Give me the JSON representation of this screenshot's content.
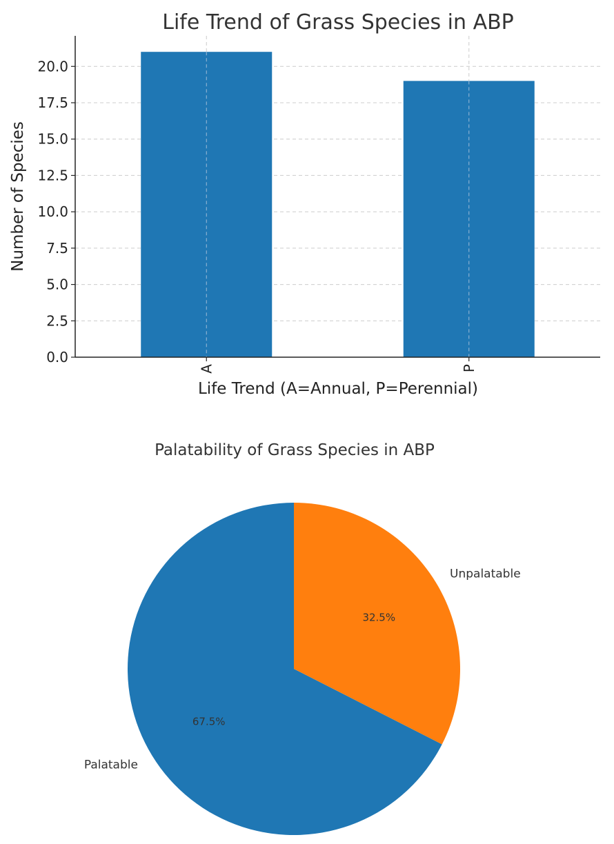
{
  "chart_data": [
    {
      "type": "bar",
      "title": "Life Trend of Grass Species in ABP",
      "xlabel": "Life Trend (A=Annual, P=Perennial)",
      "ylabel": "Number of Species",
      "categories": [
        "A",
        "P"
      ],
      "values": [
        21,
        19
      ],
      "ylim": [
        0,
        22.1
      ],
      "yticks": [
        "0.0",
        "2.5",
        "5.0",
        "7.5",
        "10.0",
        "12.5",
        "15.0",
        "17.5",
        "20.0"
      ],
      "grid": true,
      "colors": [
        "#1f77b4"
      ]
    },
    {
      "type": "pie",
      "title": "Palatability of Grass Species in ABP",
      "slices": [
        {
          "label": "Palatable",
          "value": 67.5,
          "pct_label": "67.5%",
          "color": "#1f77b4"
        },
        {
          "label": "Unpalatable",
          "value": 32.5,
          "pct_label": "32.5%",
          "color": "#ff7f0e"
        }
      ]
    }
  ]
}
